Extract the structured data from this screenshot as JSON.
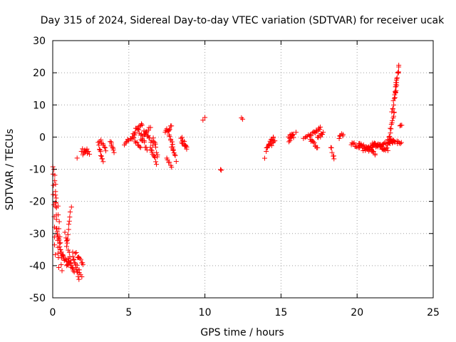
{
  "chart_data": {
    "type": "scatter",
    "title": "Day 315 of 2024, Sidereal Day-to-day VTEC variation (SDTVAR) for receiver ucak",
    "xlabel": "GPS time / hours",
    "ylabel": "SDTVAR / TECUs",
    "xlim": [
      0,
      25
    ],
    "ylim": [
      -50,
      30
    ],
    "xticks": [
      0,
      5,
      10,
      15,
      20,
      25
    ],
    "yticks": [
      -50,
      -40,
      -30,
      -20,
      -10,
      0,
      10,
      20,
      30
    ],
    "grid": true,
    "marker": "+",
    "color": "#ff0000",
    "segments": [
      {
        "x0": 0.0,
        "x1": 0.15,
        "y0": -9,
        "y1": -37,
        "n": 10
      },
      {
        "x0": 0.1,
        "x1": 0.25,
        "y0": -10,
        "y1": -22,
        "n": 8
      },
      {
        "x0": 0.15,
        "x1": 0.4,
        "y0": -18,
        "y1": -40,
        "n": 12
      },
      {
        "x0": 0.25,
        "x1": 0.55,
        "y0": -28,
        "y1": -36,
        "n": 10
      },
      {
        "x0": 0.35,
        "x1": 0.6,
        "y0": -22,
        "y1": -42,
        "n": 10
      },
      {
        "x0": 0.55,
        "x1": 1.0,
        "y0": -36,
        "y1": -40,
        "n": 14
      },
      {
        "x0": 0.9,
        "x1": 1.2,
        "y0": -34,
        "y1": -22,
        "n": 10
      },
      {
        "x0": 0.8,
        "x1": 1.2,
        "y0": -30,
        "y1": -38,
        "n": 8
      },
      {
        "x0": 1.0,
        "x1": 1.4,
        "y0": -38,
        "y1": -42,
        "n": 12
      },
      {
        "x0": 1.3,
        "x1": 1.7,
        "y0": -36,
        "y1": -44,
        "n": 12
      },
      {
        "x0": 1.5,
        "x1": 2.0,
        "y0": -36,
        "y1": -40,
        "n": 10
      },
      {
        "x0": 1.6,
        "x1": 1.9,
        "y0": -40,
        "y1": -44,
        "n": 6
      },
      {
        "x0": 1.6,
        "x1": 1.7,
        "y0": -7,
        "y1": -7,
        "n": 1
      },
      {
        "x0": 1.9,
        "x1": 2.4,
        "y0": -4,
        "y1": -5,
        "n": 8
      },
      {
        "x0": 2.0,
        "x1": 2.3,
        "y0": -5,
        "y1": -4,
        "n": 6
      },
      {
        "x0": 3.0,
        "x1": 3.3,
        "y0": -2,
        "y1": -8,
        "n": 10
      },
      {
        "x0": 3.1,
        "x1": 3.5,
        "y0": -1,
        "y1": -4,
        "n": 8
      },
      {
        "x0": 3.8,
        "x1": 4.0,
        "y0": -1,
        "y1": -5,
        "n": 8
      },
      {
        "x0": 4.7,
        "x1": 5.4,
        "y0": -2,
        "y1": 1,
        "n": 12
      },
      {
        "x0": 5.2,
        "x1": 5.8,
        "y0": 0,
        "y1": -3,
        "n": 10
      },
      {
        "x0": 5.4,
        "x1": 5.9,
        "y0": 2,
        "y1": 4,
        "n": 10
      },
      {
        "x0": 5.6,
        "x1": 6.2,
        "y0": 3,
        "y1": -4,
        "n": 12
      },
      {
        "x0": 5.8,
        "x1": 6.4,
        "y0": -1,
        "y1": 3,
        "n": 10
      },
      {
        "x0": 6.0,
        "x1": 6.6,
        "y0": 2,
        "y1": -2,
        "n": 10
      },
      {
        "x0": 6.4,
        "x1": 6.8,
        "y0": -3,
        "y1": -8,
        "n": 10
      },
      {
        "x0": 6.6,
        "x1": 6.9,
        "y0": 0,
        "y1": -6,
        "n": 8
      },
      {
        "x0": 7.4,
        "x1": 7.8,
        "y0": 2,
        "y1": 3,
        "n": 10
      },
      {
        "x0": 7.5,
        "x1": 7.8,
        "y0": -7,
        "y1": -9,
        "n": 6
      },
      {
        "x0": 7.6,
        "x1": 8.0,
        "y0": 2,
        "y1": -5,
        "n": 10
      },
      {
        "x0": 7.8,
        "x1": 8.1,
        "y0": -3,
        "y1": -7,
        "n": 6
      },
      {
        "x0": 8.4,
        "x1": 8.8,
        "y0": -1,
        "y1": -3,
        "n": 8
      },
      {
        "x0": 8.5,
        "x1": 8.8,
        "y0": 0,
        "y1": -4,
        "n": 6
      },
      {
        "x0": 9.9,
        "x1": 10.0,
        "y0": 5.5,
        "y1": 5.5,
        "n": 2
      },
      {
        "x0": 11.0,
        "x1": 11.1,
        "y0": -10.5,
        "y1": -10.5,
        "n": 2
      },
      {
        "x0": 12.4,
        "x1": 12.45,
        "y0": 6,
        "y1": 5,
        "n": 2
      },
      {
        "x0": 13.9,
        "x1": 14.0,
        "y0": -6,
        "y1": -6,
        "n": 1
      },
      {
        "x0": 14.0,
        "x1": 14.5,
        "y0": -4,
        "y1": 0,
        "n": 14
      },
      {
        "x0": 14.2,
        "x1": 14.6,
        "y0": -3,
        "y1": -1,
        "n": 8
      },
      {
        "x0": 15.5,
        "x1": 15.8,
        "y0": 0,
        "y1": 1,
        "n": 8
      },
      {
        "x0": 15.5,
        "x1": 15.8,
        "y0": -1,
        "y1": 0,
        "n": 6
      },
      {
        "x0": 16.0,
        "x1": 16.1,
        "y0": 2,
        "y1": 2,
        "n": 1
      },
      {
        "x0": 16.5,
        "x1": 17.0,
        "y0": 0,
        "y1": 1,
        "n": 8
      },
      {
        "x0": 16.9,
        "x1": 17.4,
        "y0": -1,
        "y1": -3,
        "n": 10
      },
      {
        "x0": 17.1,
        "x1": 17.6,
        "y0": 1,
        "y1": 3,
        "n": 10
      },
      {
        "x0": 17.4,
        "x1": 17.8,
        "y0": 0,
        "y1": 1,
        "n": 8
      },
      {
        "x0": 18.3,
        "x1": 18.5,
        "y0": -3,
        "y1": -7,
        "n": 6
      },
      {
        "x0": 18.8,
        "x1": 19.1,
        "y0": 0,
        "y1": 1,
        "n": 6
      },
      {
        "x0": 19.6,
        "x1": 20.3,
        "y0": -2,
        "y1": -3,
        "n": 12
      },
      {
        "x0": 20.1,
        "x1": 21.2,
        "y0": -2,
        "y1": -5,
        "n": 24
      },
      {
        "x0": 20.4,
        "x1": 21.5,
        "y0": -4,
        "y1": -2,
        "n": 22
      },
      {
        "x0": 21.0,
        "x1": 22.0,
        "y0": -2,
        "y1": -4,
        "n": 20
      },
      {
        "x0": 21.5,
        "x1": 22.4,
        "y0": -3,
        "y1": -1,
        "n": 18
      },
      {
        "x0": 22.0,
        "x1": 22.9,
        "y0": -1,
        "y1": -2,
        "n": 16
      },
      {
        "x0": 22.1,
        "x1": 22.45,
        "y0": 0,
        "y1": 8,
        "n": 12
      },
      {
        "x0": 22.3,
        "x1": 22.6,
        "y0": 8,
        "y1": 16,
        "n": 12
      },
      {
        "x0": 22.5,
        "x1": 22.75,
        "y0": 14,
        "y1": 22,
        "n": 14
      },
      {
        "x0": 22.8,
        "x1": 22.95,
        "y0": 4,
        "y1": 4,
        "n": 3
      }
    ]
  }
}
